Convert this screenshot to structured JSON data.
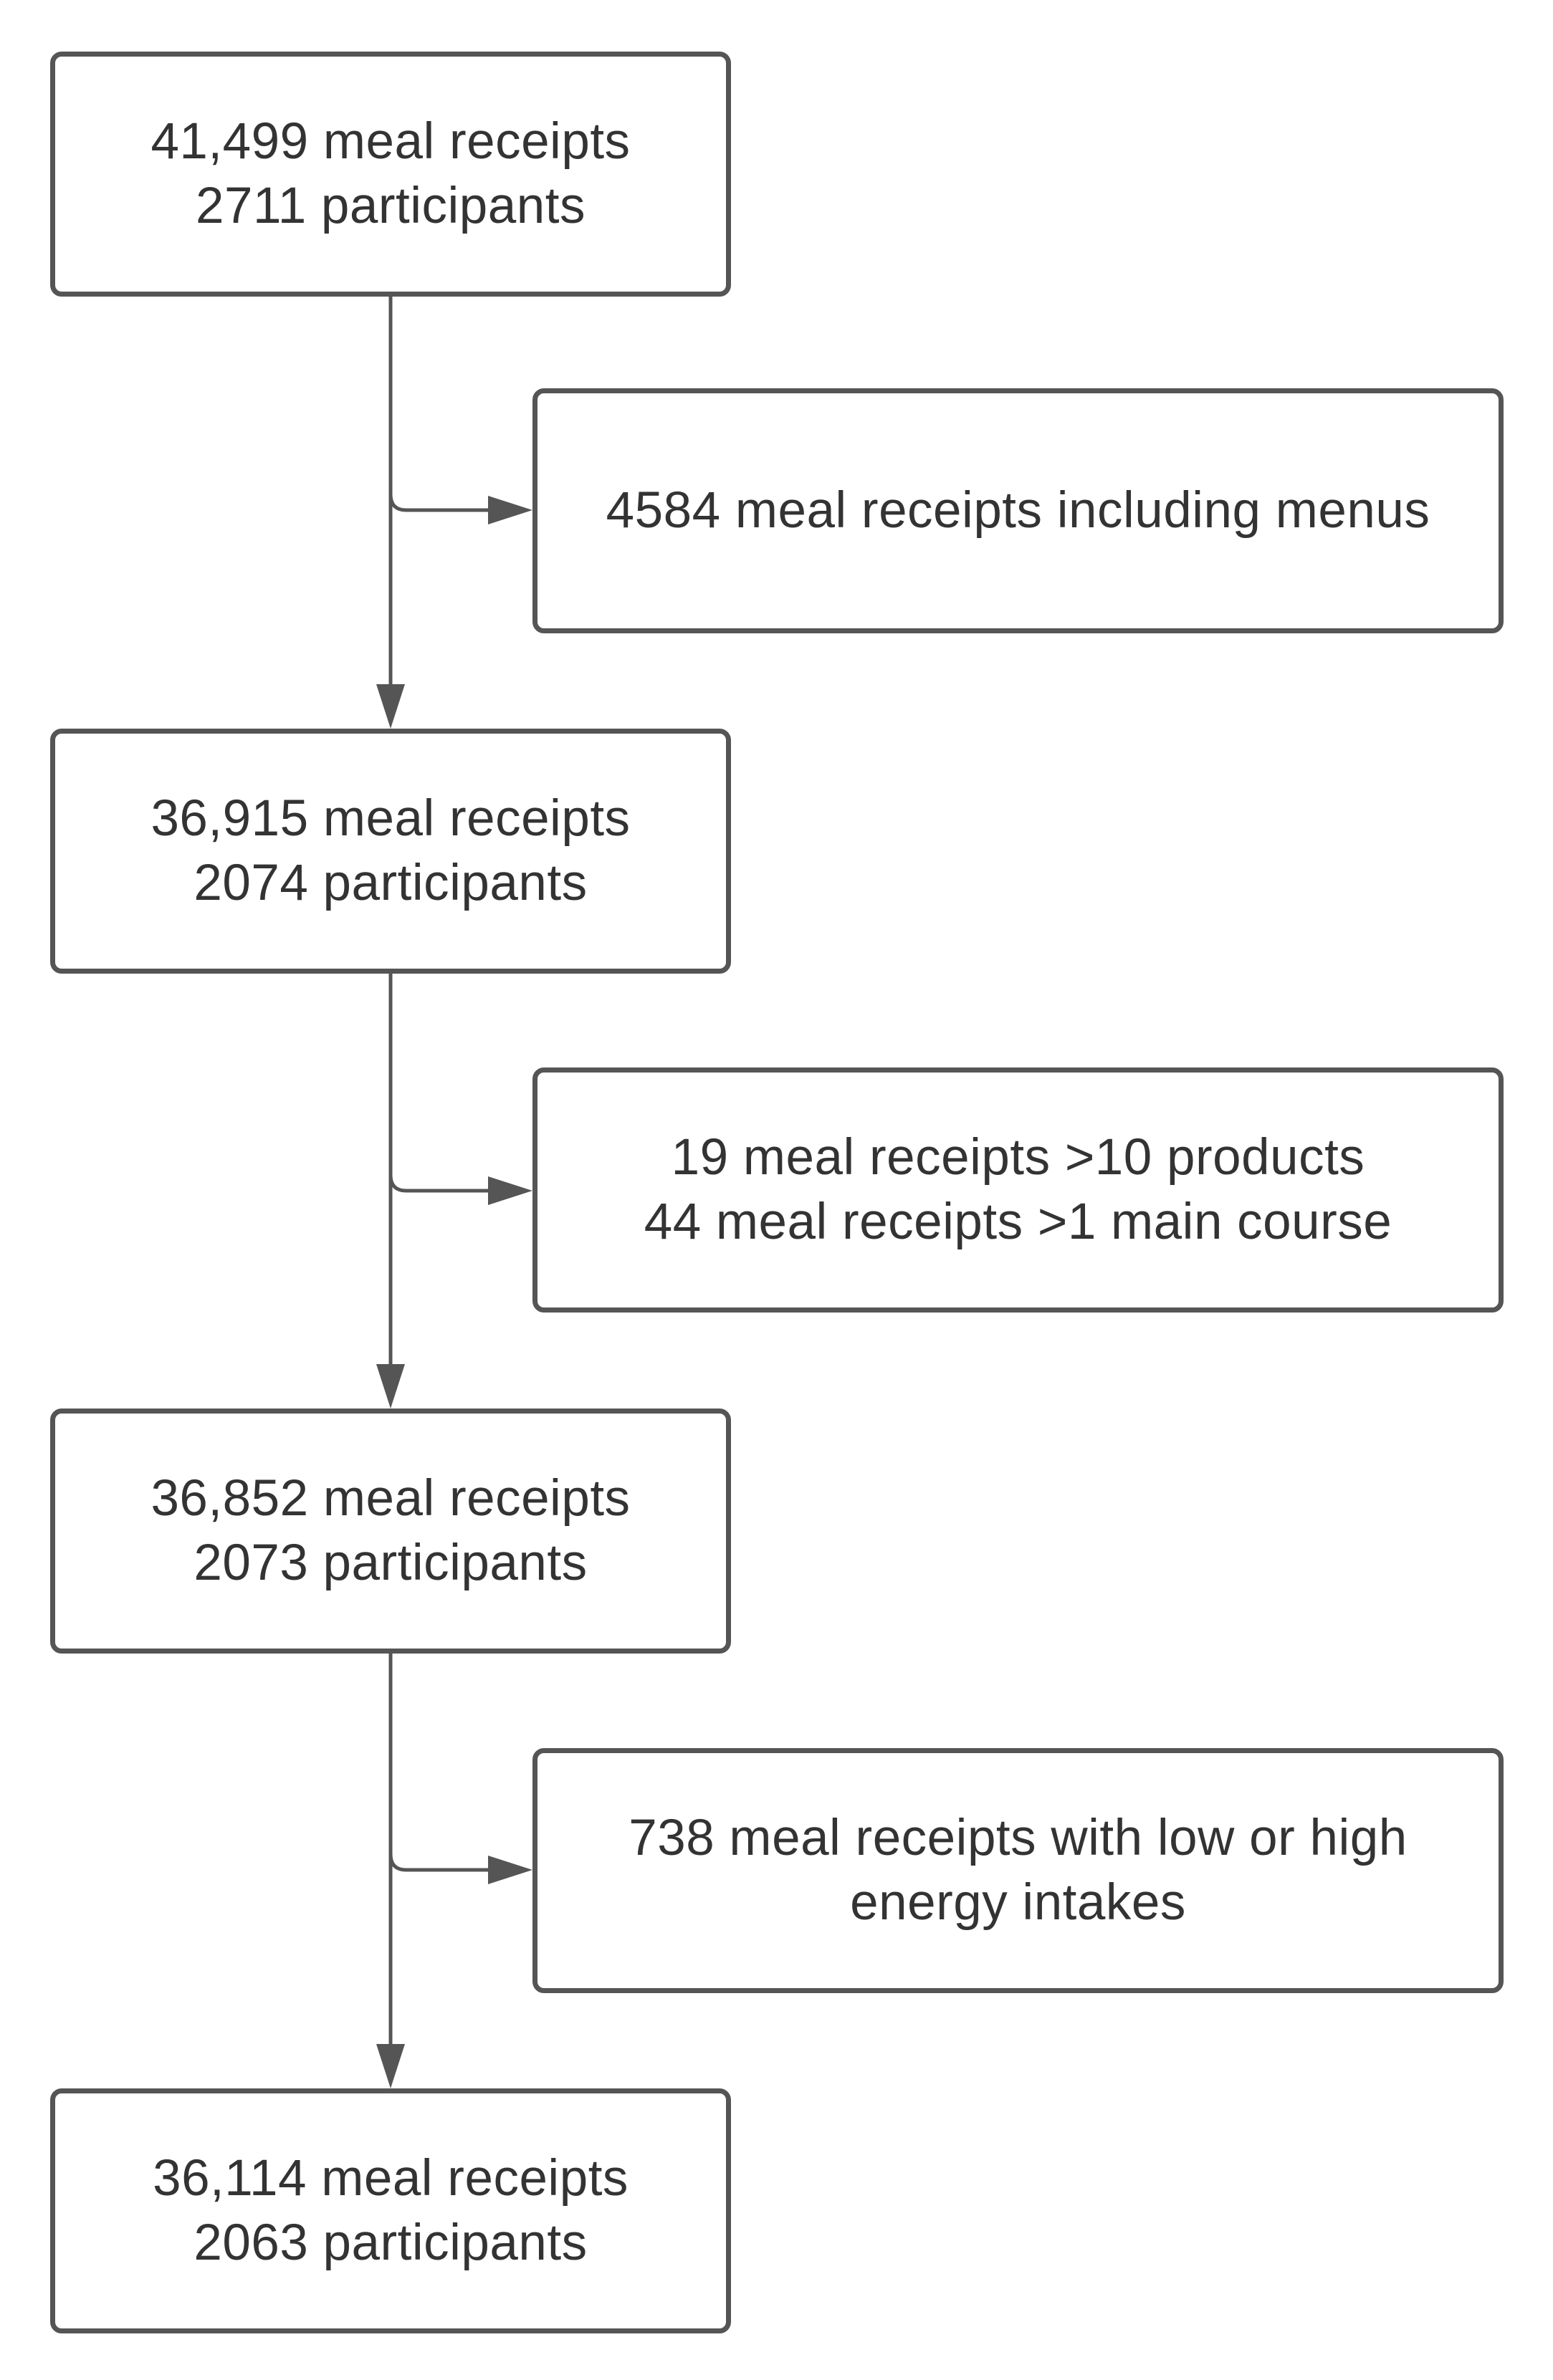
{
  "boxes": {
    "step1": {
      "line1": "41,499 meal receipts",
      "line2": "2711 participants"
    },
    "step2": {
      "line1": "36,915 meal receipts",
      "line2": "2074 participants"
    },
    "step3": {
      "line1": "36,852 meal receipts",
      "line2": "2073 participants"
    },
    "step4": {
      "line1": "36,114 meal receipts",
      "line2": "2063 participants"
    }
  },
  "exclusions": {
    "excl1": {
      "line1": "4584 meal receipts including menus"
    },
    "excl2": {
      "line1": "19 meal receipts >10 products",
      "line2": "44 meal receipts >1 main course"
    },
    "excl3": {
      "line1": "738 meal receipts with low or high",
      "line2": "energy intakes"
    }
  },
  "colors": {
    "stroke": "#555555",
    "text": "#333333",
    "background": "#ffffff"
  }
}
